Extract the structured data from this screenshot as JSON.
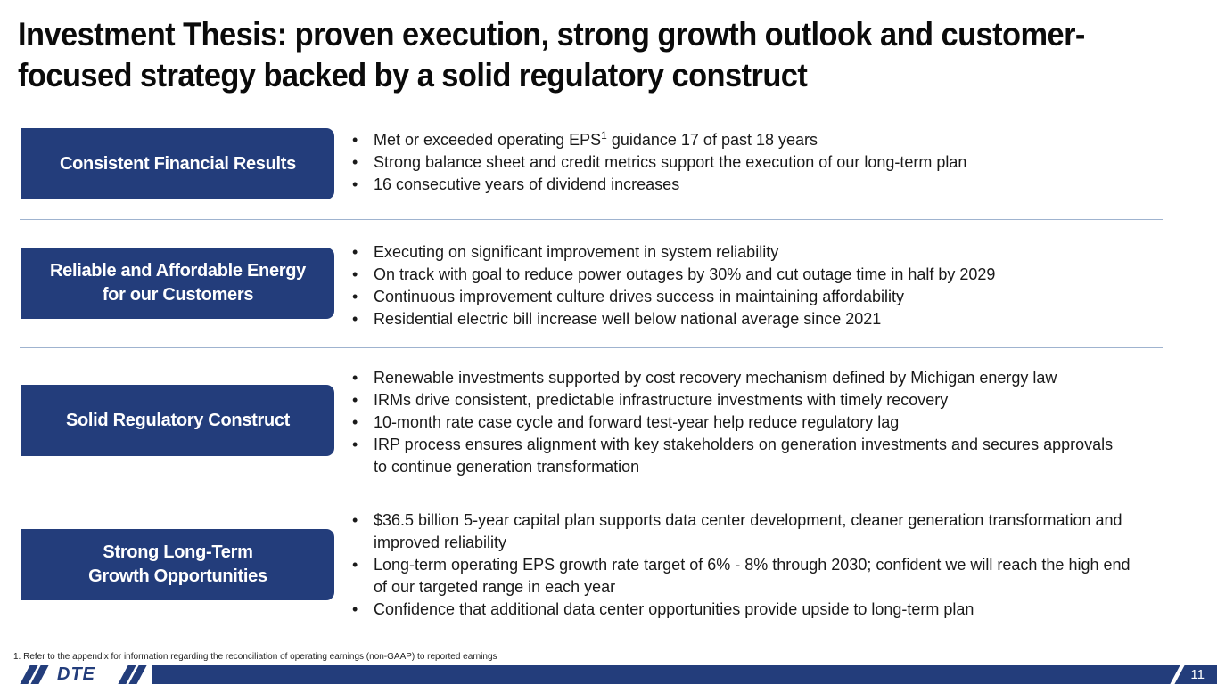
{
  "title": "Investment Thesis: proven execution, strong growth outlook and customer-focused strategy backed by a solid regulatory construct",
  "sections": [
    {
      "label": "Consistent Financial Results",
      "bullets": [
        {
          "pre": "Met or exceeded operating EPS",
          "sup": "1",
          "post": " guidance 17 of past 18 years"
        },
        {
          "pre": "Strong balance sheet and credit metrics support the execution of our long-term plan"
        },
        {
          "pre": "16 consecutive years of dividend increases"
        }
      ]
    },
    {
      "label": "Reliable and Affordable Energy\nfor our Customers",
      "bullets": [
        {
          "pre": "Executing on significant improvement in system reliability"
        },
        {
          "pre": "On track with goal to reduce power outages by 30% and cut outage time in half by 2029"
        },
        {
          "pre": "Continuous improvement culture drives success in maintaining affordability"
        },
        {
          "pre": "Residential electric bill increase well below national average since 2021"
        }
      ]
    },
    {
      "label": "Solid Regulatory Construct",
      "bullets": [
        {
          "pre": "Renewable investments supported by cost recovery mechanism defined by Michigan energy law"
        },
        {
          "pre": "IRMs drive consistent, predictable infrastructure investments with timely recovery"
        },
        {
          "pre": "10-month rate case cycle and forward test-year help reduce regulatory lag"
        },
        {
          "pre": "IRP process ensures alignment with key stakeholders on generation investments and secures approvals to continue generation transformation"
        }
      ]
    },
    {
      "label": "Strong Long-Term\nGrowth Opportunities",
      "bullets": [
        {
          "pre": "$36.5 billion 5-year capital plan supports data center development, cleaner generation transformation and improved reliability"
        },
        {
          "pre": "Long-term operating EPS growth rate target of 6% - 8% through 2030; confident we will reach the high end of our targeted range in each year"
        },
        {
          "pre": "Confidence that additional data center opportunities provide upside to long-term plan"
        }
      ]
    }
  ],
  "footnote": "1.   Refer to the appendix for information regarding the reconciliation of operating earnings (non-GAAP) to reported earnings",
  "footer": {
    "logo": "DTE",
    "page_number": "11"
  },
  "colors": {
    "accent": "#233d7b",
    "divider": "#9fb3cf"
  }
}
